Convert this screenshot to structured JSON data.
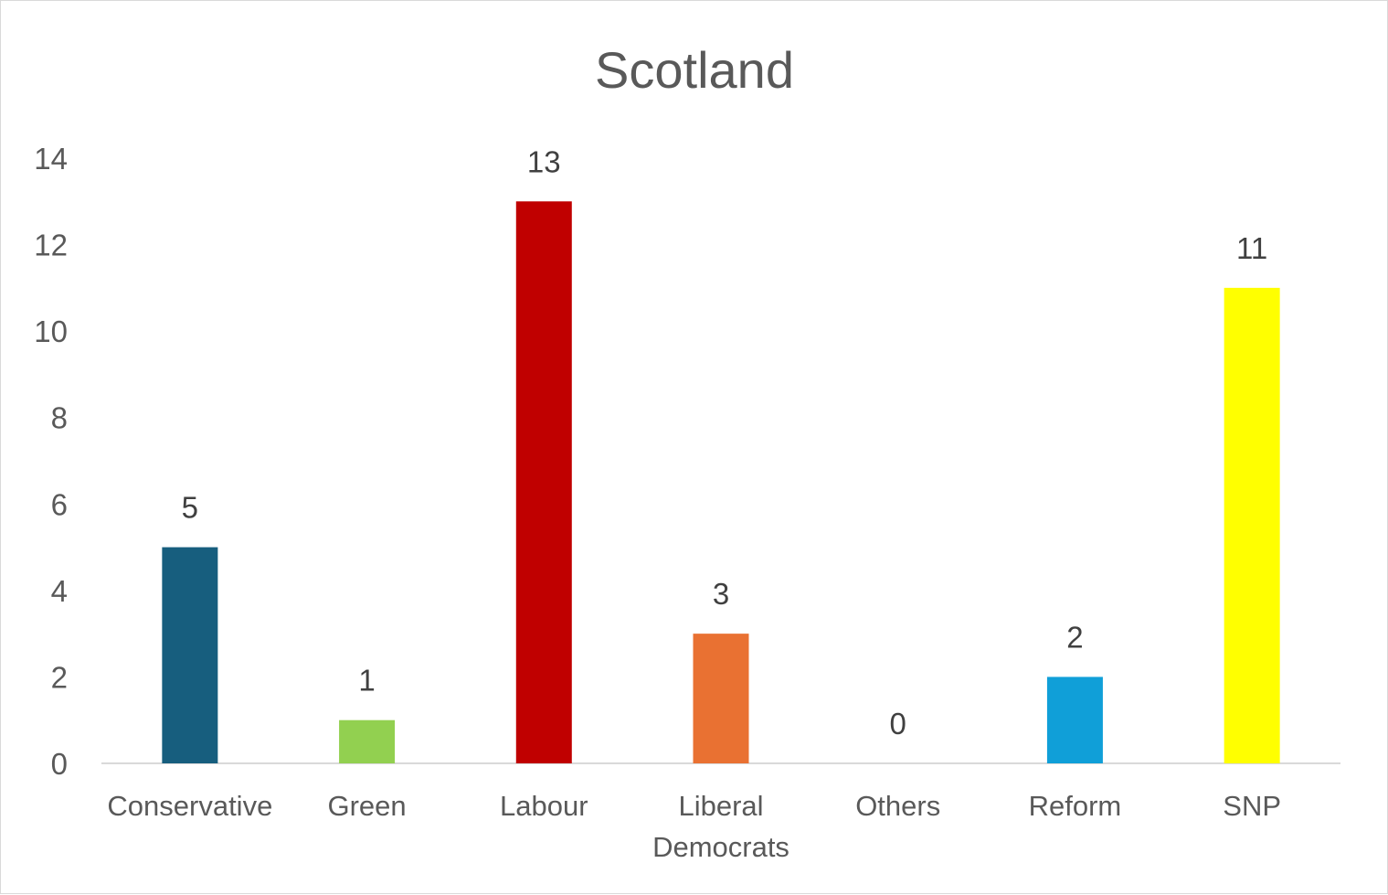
{
  "chart_data": {
    "type": "bar",
    "title": "Scotland",
    "xlabel": "",
    "ylabel": "",
    "ylim": [
      0,
      14
    ],
    "y_ticks": [
      0,
      2,
      4,
      6,
      8,
      10,
      12,
      14
    ],
    "grid": false,
    "legend": "none",
    "data_labels": true,
    "categories": [
      [
        "Conservative"
      ],
      [
        "Green"
      ],
      [
        "Labour"
      ],
      [
        "Liberal",
        "Democrats"
      ],
      [
        "Others"
      ],
      [
        "Reform"
      ],
      [
        "SNP"
      ]
    ],
    "values": [
      5,
      1,
      13,
      3,
      0,
      2,
      11
    ],
    "colors": [
      "#175e7e",
      "#92d050",
      "#c00000",
      "#e97132",
      "#a5a5a5",
      "#109fd8",
      "#ffff00"
    ]
  }
}
